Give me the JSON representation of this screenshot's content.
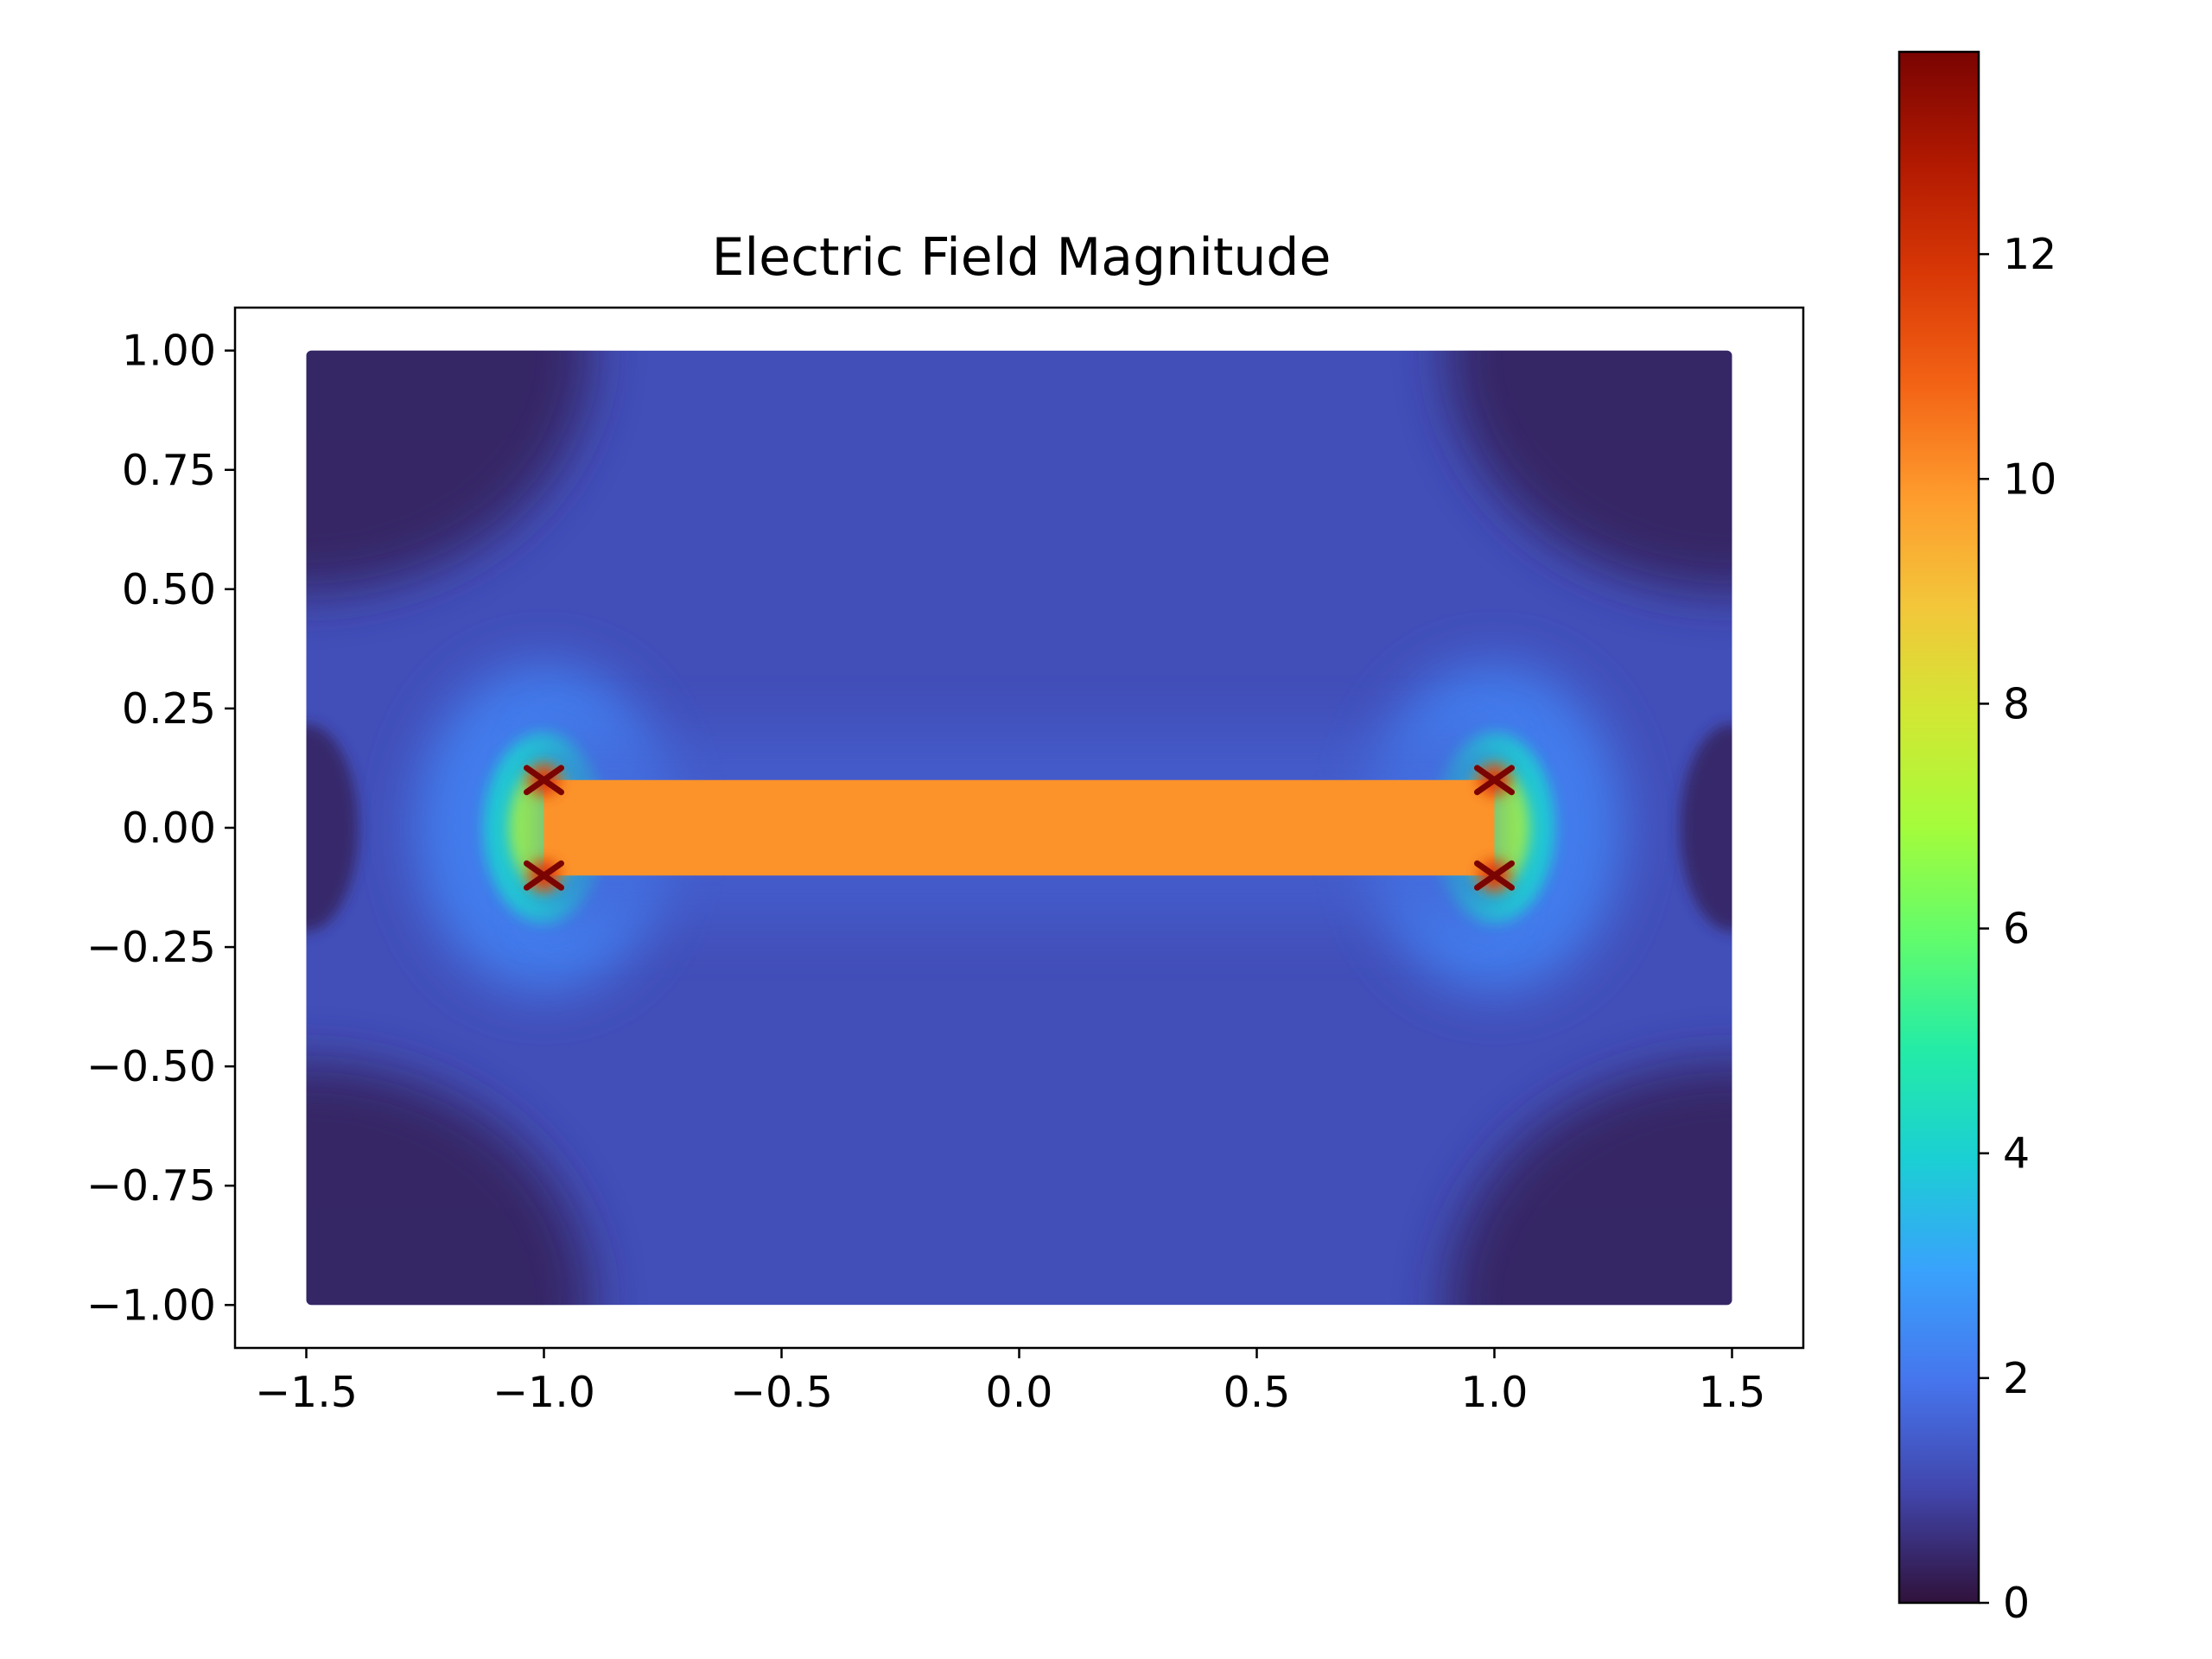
{
  "chart_data": {
    "type": "heatmap",
    "title": "Electric Field Magnitude",
    "xlabel": "",
    "ylabel": "",
    "xlim": [
      -1.65,
      1.65
    ],
    "ylim": [
      -1.09,
      1.09
    ],
    "x_ticks": [
      -1.5,
      -1.0,
      -0.5,
      0.0,
      0.5,
      1.0,
      1.5
    ],
    "x_tick_labels": [
      "−1.5",
      "−1.0",
      "−0.5",
      "0.0",
      "0.5",
      "1.0",
      "1.5"
    ],
    "y_ticks": [
      1.0,
      0.75,
      0.5,
      0.25,
      0.0,
      -0.25,
      -0.5,
      -0.75,
      -1.0
    ],
    "y_tick_labels": [
      "1.00",
      "0.75",
      "0.50",
      "0.25",
      "0.00",
      "−0.25",
      "−0.50",
      "−0.75",
      "−1.00"
    ],
    "domain": {
      "x": [
        -1.5,
        1.5
      ],
      "y": [
        -1.0,
        1.0
      ]
    },
    "conductor": {
      "x": [
        -1.0,
        1.0
      ],
      "y": [
        -0.1,
        0.1
      ],
      "value": 10.0
    },
    "field_peaks": [
      {
        "x": -1.0,
        "y": 0.1,
        "value": 13.8
      },
      {
        "x": -1.0,
        "y": -0.1,
        "value": 13.8
      },
      {
        "x": 1.0,
        "y": 0.1,
        "value": 13.8
      },
      {
        "x": 1.0,
        "y": -0.1,
        "value": 13.8
      }
    ],
    "background_value": 1.2,
    "corner_value": 0.3,
    "grid": false,
    "colorbar": {
      "colormap": "turbo",
      "min": 0,
      "max": 13.8,
      "ticks": [
        0,
        2,
        4,
        6,
        8,
        10,
        12
      ],
      "tick_labels": [
        "0",
        "2",
        "4",
        "6",
        "8",
        "10",
        "12"
      ],
      "position": "right"
    }
  },
  "colors": {
    "turbo_stops": [
      "#30123b",
      "#4145ab",
      "#4675ed",
      "#39a2fc",
      "#1bcfd4",
      "#24eca6",
      "#61fc6c",
      "#a4fc3b",
      "#d1e834",
      "#f3c63a",
      "#fe9b2d",
      "#f36315",
      "#d93806",
      "#b11901",
      "#7a0402"
    ],
    "conductor": "#fb922c",
    "background_field": "#4449b4",
    "corner_field": "#311541",
    "axes": "#000000"
  }
}
